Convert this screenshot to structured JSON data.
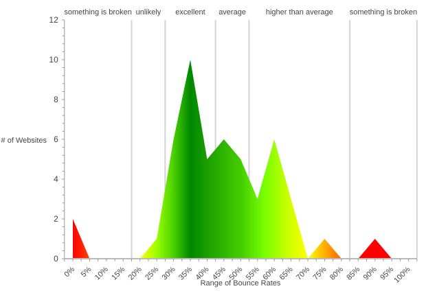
{
  "chart_data": {
    "type": "area",
    "title": "",
    "xlabel": "Range of Bounce Rates",
    "ylabel": "# of Websites",
    "ylim": [
      0,
      12
    ],
    "xlim": [
      -2.5,
      102.5
    ],
    "y_ticks": [
      0,
      2,
      4,
      6,
      8,
      10,
      12
    ],
    "grid": false,
    "categories": [
      "0%",
      "5%",
      "10%",
      "15%",
      "20%",
      "25%",
      "30%",
      "35%",
      "40%",
      "45%",
      "50%",
      "55%",
      "60%",
      "65%",
      "70%",
      "75%",
      "80%",
      "85%",
      "90%",
      "95%",
      "100%"
    ],
    "x": [
      0,
      5,
      10,
      15,
      20,
      25,
      30,
      35,
      40,
      45,
      50,
      55,
      60,
      65,
      70,
      75,
      80,
      85,
      90,
      95,
      100
    ],
    "values": [
      2,
      0,
      0,
      0,
      0,
      1,
      6,
      10,
      5,
      6,
      5,
      3,
      6,
      3,
      0,
      1,
      0,
      0,
      1,
      0,
      0
    ],
    "regions": [
      {
        "label": "something is broken",
        "from": -2.5,
        "to": 17.5,
        "color": "#ff0000"
      },
      {
        "label": "unlikely",
        "from": 17.5,
        "to": 27.5,
        "color": "#b6ff00"
      },
      {
        "label": "excellent",
        "from": 27.5,
        "to": 42.5,
        "color": "#008a00"
      },
      {
        "label": "average",
        "from": 42.5,
        "to": 52.5,
        "color": "#3dc400"
      },
      {
        "label": "higher than average",
        "from": 52.5,
        "to": 82.5,
        "color": "#ffff00"
      },
      {
        "label": "something is broken",
        "from": 82.5,
        "to": 102.5,
        "color": "#ff0000"
      }
    ],
    "fill_gradient_stops": [
      {
        "x": 0,
        "color": "#ff0000"
      },
      {
        "x": 20,
        "color": "#ffff00"
      },
      {
        "x": 25,
        "color": "#99ff00"
      },
      {
        "x": 30,
        "color": "#4ad000"
      },
      {
        "x": 35,
        "color": "#008800"
      },
      {
        "x": 40,
        "color": "#1a9e00"
      },
      {
        "x": 50,
        "color": "#44cc00"
      },
      {
        "x": 57,
        "color": "#77ff00"
      },
      {
        "x": 64,
        "color": "#c8ff00"
      },
      {
        "x": 70,
        "color": "#ffff00"
      },
      {
        "x": 80,
        "color": "#ff6000"
      },
      {
        "x": 85,
        "color": "#ff0000"
      }
    ]
  }
}
